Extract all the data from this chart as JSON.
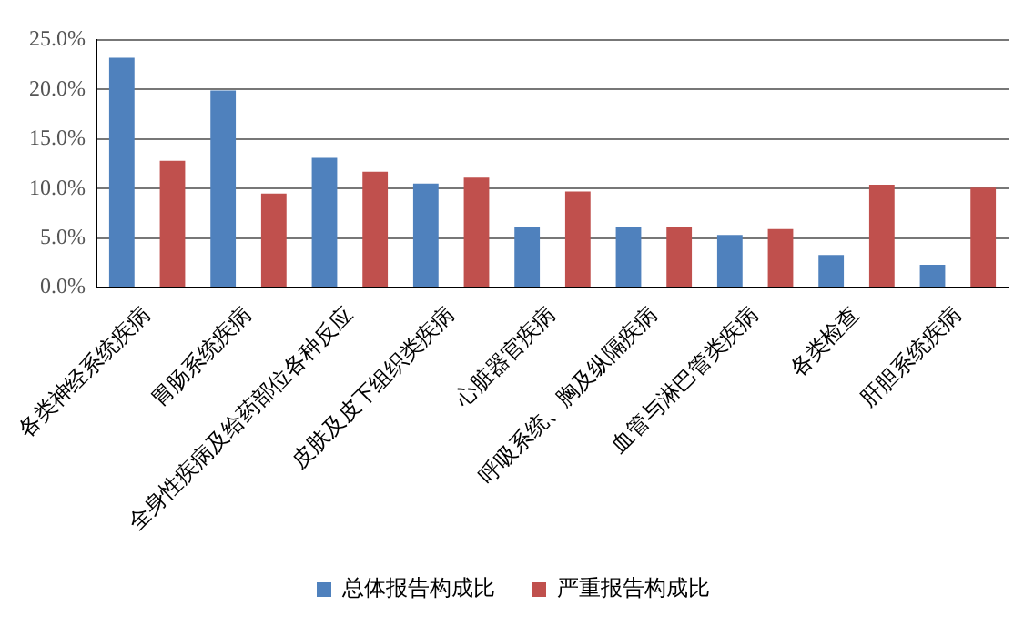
{
  "chart_data": {
    "type": "bar",
    "categories": [
      "各类神经系统疾病",
      "胃肠系统疾病",
      "全身性疾病及给药部位各种反应",
      "皮肤及皮下组织类疾病",
      "心脏器官疾病",
      "呼吸系统、胸及纵隔疾病",
      "血管与淋巴管类疾病",
      "各类检查",
      "肝胆系统疾病"
    ],
    "series": [
      {
        "name": "总体报告构成比",
        "color": "#4f81bd",
        "values": [
          23.2,
          19.9,
          13.1,
          10.5,
          6.1,
          6.1,
          5.3,
          3.3,
          2.3
        ]
      },
      {
        "name": "严重报告构成比",
        "color": "#c0504d",
        "values": [
          12.8,
          9.5,
          11.7,
          11.1,
          9.7,
          6.1,
          5.9,
          10.4,
          10.1
        ]
      }
    ],
    "ylim": [
      0,
      25
    ],
    "yticks": [
      {
        "value": 0,
        "label": "0.0%"
      },
      {
        "value": 5,
        "label": "5.0%"
      },
      {
        "value": 10,
        "label": "10.0%"
      },
      {
        "value": 15,
        "label": "15.0%"
      },
      {
        "value": 20,
        "label": "20.0%"
      },
      {
        "value": 25,
        "label": "25.0%"
      }
    ],
    "grid": "y",
    "legend": "bottom"
  }
}
